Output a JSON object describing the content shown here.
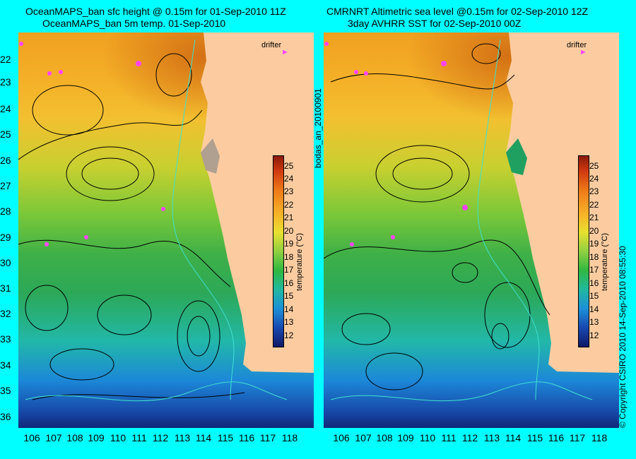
{
  "left_panel": {
    "title_line1": "OceanMAPS_ban sfc height @ 0.15m for 01-Sep-2010 11Z",
    "title_line2": "OceanMAPS_ban 5m temp. 01-Sep-2010",
    "legend_label": "drifter"
  },
  "right_panel": {
    "title_line1": "CMRNRT Altimetric sea level  @0.15m  for 02-Sep-2010 12Z",
    "title_line2": "3day AVHRR SST for 02-Sep-2010 00Z",
    "legend_label": "drifter"
  },
  "map": {
    "latitude_ticks": [
      "22",
      "23",
      "24",
      "25",
      "26",
      "27",
      "28",
      "29",
      "30",
      "31",
      "32",
      "33",
      "34",
      "35",
      "36"
    ],
    "longitude_ticks": [
      "106",
      "107",
      "108",
      "109",
      "110",
      "111",
      "112",
      "113",
      "114",
      "115",
      "116",
      "117",
      "118"
    ],
    "colors": {
      "land": "#fccca0",
      "background": "#00ffff",
      "drifter": "#ff44ff",
      "bathymetry": "#40e0d0",
      "contours": "#000000"
    }
  },
  "colorbar": {
    "label": "temperature (°C)",
    "ticks": [
      "25",
      "24",
      "23",
      "22",
      "21",
      "20",
      "19",
      "18",
      "17",
      "16",
      "15",
      "14",
      "13",
      "12"
    ]
  },
  "side_text": {
    "analysis_id": "bodas_an_20100901",
    "copyright": "© Copyright CSIRO 2010    14-Sep-2010 08:55:30"
  }
}
